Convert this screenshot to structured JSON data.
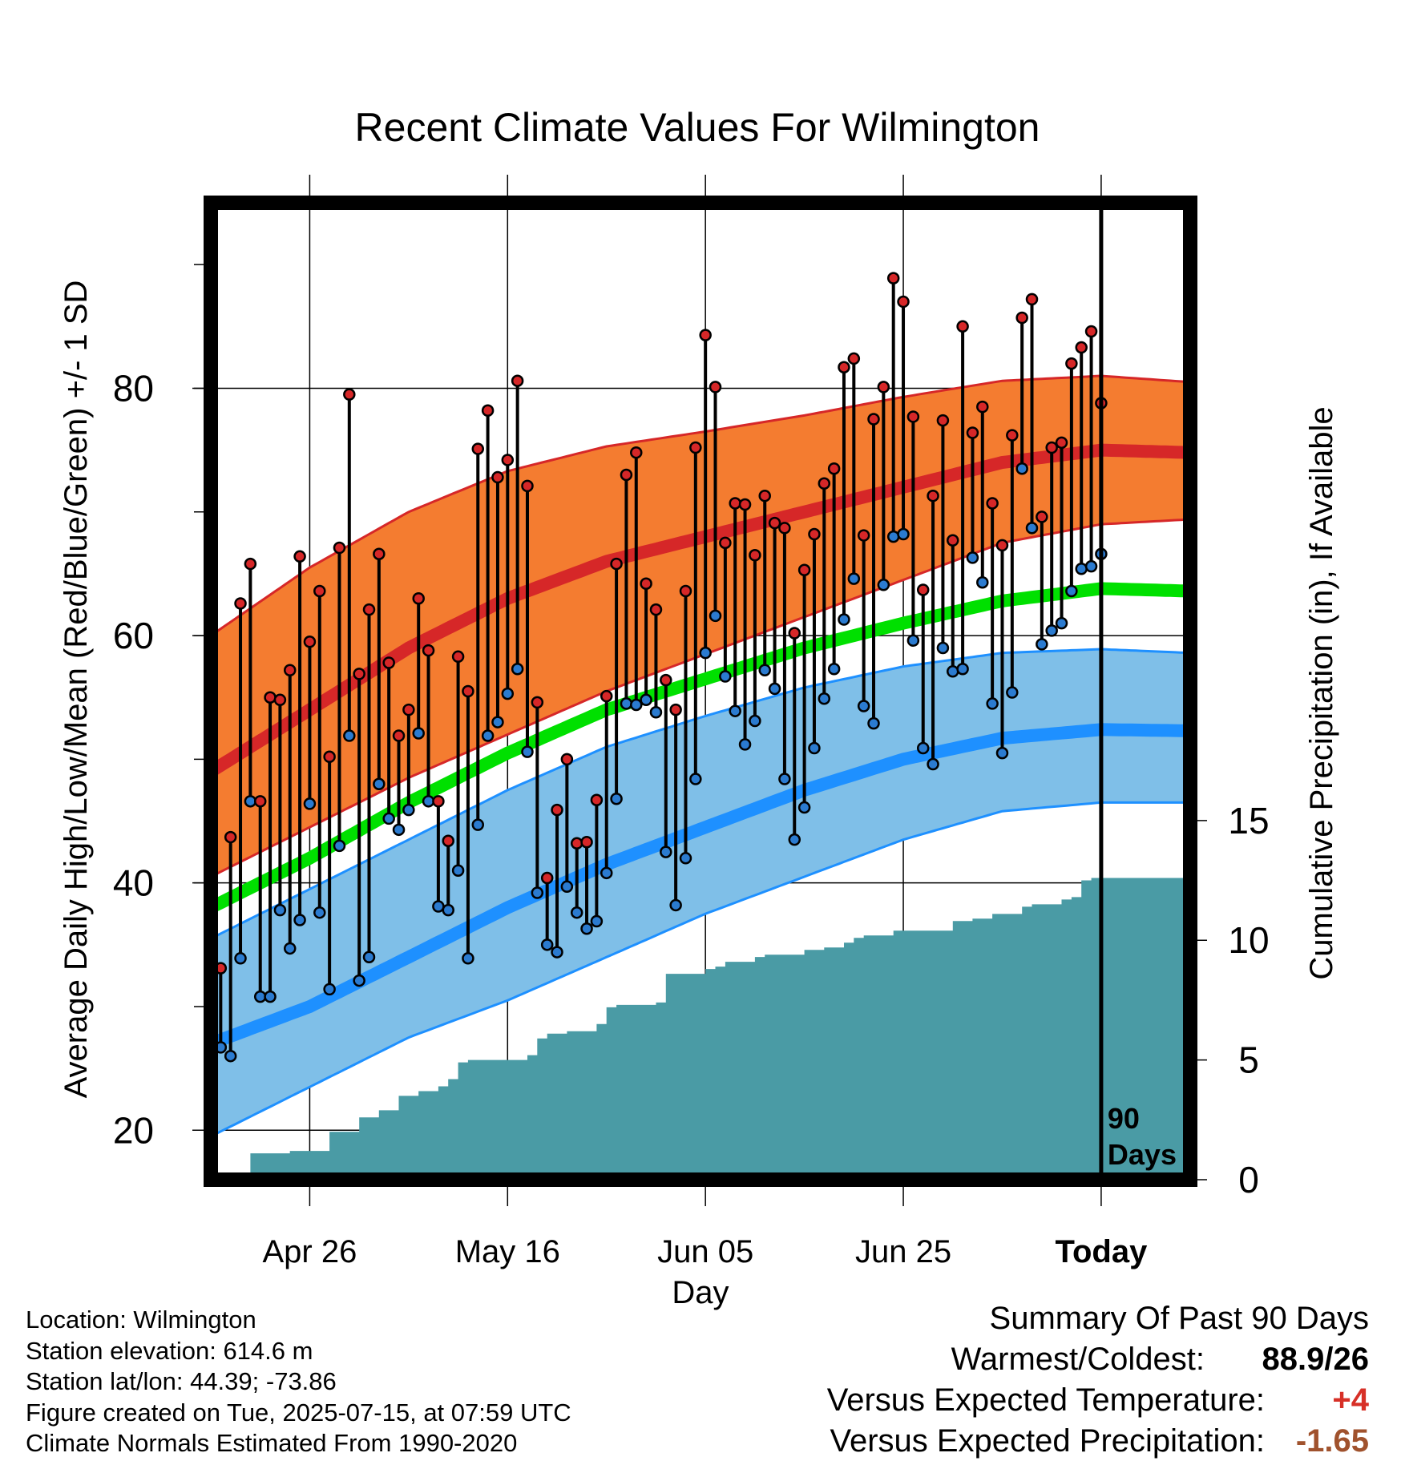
{
  "title": "Recent Climate Values For Wilmington",
  "ylabel_left": "Average Daily High/Low/Mean (Red/Blue/Green) +/- 1 SD",
  "ylabel_right": "Cumulative Precipitation (in), If Available",
  "xlabel": "Day",
  "colors": {
    "high_band": "#f47c30",
    "high_line": "#d62728",
    "mean_line": "#00e000",
    "low_band": "#7fbfe8",
    "low_line": "#1e90ff",
    "precip": "#4a9ba5",
    "high_dot": "#d62728",
    "low_dot": "#2b7bd0"
  },
  "info": {
    "location": "Location: Wilmington",
    "elevation": "Station elevation: 614.6 m",
    "latlon": "Station lat/lon: 44.39; -73.86",
    "created": "Figure created on Tue, 2025-07-15, at 07:59 UTC",
    "normals": "Climate Normals Estimated From 1990-2020"
  },
  "summary": {
    "heading": "Summary Of Past 90 Days",
    "warmest_label": "Warmest/Coldest:",
    "warmest_value": "88.9/26",
    "temp_label": "Versus Expected Temperature:",
    "temp_value": "+4",
    "precip_label": "Versus Expected Precipitation:",
    "precip_value": "-1.65"
  },
  "chart_data": {
    "type": "line",
    "title": "Recent Climate Values For Wilmington",
    "xlabel": "Day",
    "ylabel": "Average Daily High/Low/Mean (Red/Blue/Green) +/- 1 SD",
    "y2label": "Cumulative Precipitation (in), If Available",
    "xlim": [
      -90,
      9
    ],
    "ylim": [
      16,
      95
    ],
    "y2lim": [
      0,
      40.8
    ],
    "x_ticks": [
      {
        "x": -80,
        "label": "Apr 26"
      },
      {
        "x": -60,
        "label": "May 16"
      },
      {
        "x": -40,
        "label": "Jun 05"
      },
      {
        "x": -20,
        "label": "Jun 25"
      },
      {
        "x": 0,
        "label": "Today"
      }
    ],
    "y_ticks": [
      20,
      40,
      60,
      80
    ],
    "y_minor_ticks": [
      30,
      50,
      70,
      90
    ],
    "y2_ticks": [
      0,
      5,
      10,
      15
    ],
    "grid": true,
    "today_marker": {
      "x": 0,
      "label": [
        "90",
        "Days"
      ]
    },
    "normals": {
      "x": [
        -90,
        -80,
        -70,
        -60,
        -50,
        -40,
        -30,
        -20,
        -10,
        0,
        9
      ],
      "high_mean": [
        49,
        54,
        59,
        63,
        66,
        68,
        70,
        72,
        74,
        75,
        74.8
      ],
      "high_sd_upper": [
        60,
        65.5,
        70,
        73.3,
        75.3,
        76.5,
        77.8,
        79.3,
        80.6,
        81,
        80.5
      ],
      "high_sd_lower": [
        40.5,
        44.5,
        48.5,
        52,
        55.5,
        58.5,
        61.5,
        64.5,
        67.5,
        69,
        69.4
      ],
      "mean": [
        38,
        42,
        46.5,
        50.5,
        54,
        56.5,
        59,
        61,
        62.8,
        63.8,
        63.6
      ],
      "low_mean": [
        27,
        30,
        34,
        38,
        41.5,
        44.5,
        47.5,
        50,
        51.7,
        52.4,
        52.3
      ],
      "low_sd_upper": [
        35.5,
        39.5,
        43.5,
        47.5,
        51,
        53.5,
        55.8,
        57.5,
        58.6,
        58.9,
        58.6
      ],
      "low_sd_lower": [
        19.5,
        23.5,
        27.5,
        30.5,
        34,
        37.5,
        40.5,
        43.5,
        45.8,
        46.5,
        46.5
      ]
    },
    "series": [
      {
        "name": "High",
        "values": [
          33.1,
          43.7,
          62.6,
          65.8,
          46.6,
          55,
          54.8,
          57.2,
          66.4,
          59.5,
          63.6,
          50.2,
          67.1,
          79.5,
          56.9,
          62.1,
          66.6,
          57.8,
          51.9,
          54,
          63,
          58.8,
          46.6,
          43.4,
          58.3,
          55.5,
          75.1,
          78.2,
          72.8,
          74.2,
          80.6,
          72.1,
          54.6,
          40.4,
          45.9,
          50,
          43.2,
          43.3,
          46.7,
          55.1,
          65.8,
          73,
          74.8,
          64.2,
          62.1,
          56.4,
          54,
          63.6,
          75.2,
          84.3,
          80.1,
          67.5,
          70.7,
          70.6,
          66.5,
          71.3,
          69.1,
          68.7,
          60.2,
          65.3,
          68.2,
          72.3,
          73.5,
          81.7,
          82.4,
          68.1,
          77.5,
          80.1,
          88.9,
          87,
          77.7,
          63.7,
          71.3,
          77.4,
          67.7,
          85,
          76.4,
          78.5,
          70.7,
          67.3,
          76.2,
          85.7,
          87.2,
          69.6,
          75.2,
          75.6,
          82,
          83.3,
          84.6,
          78.8
        ]
      },
      {
        "name": "Low",
        "values": [
          26.7,
          26,
          33.9,
          46.6,
          30.8,
          30.8,
          37.8,
          34.7,
          37,
          46.4,
          37.6,
          31.4,
          43,
          51.9,
          32.1,
          34,
          48,
          45.2,
          44.3,
          45.9,
          52.1,
          46.6,
          38.1,
          37.8,
          41,
          33.9,
          44.7,
          51.9,
          53,
          55.3,
          57.3,
          50.6,
          39.2,
          35,
          34.4,
          39.7,
          37.6,
          36.3,
          36.9,
          40.8,
          46.8,
          54.5,
          54.4,
          54.8,
          53.8,
          42.5,
          38.2,
          42,
          48.4,
          58.6,
          61.6,
          56.7,
          53.9,
          51.2,
          53.1,
          57.2,
          55.7,
          48.4,
          43.5,
          46.1,
          50.9,
          54.9,
          57.3,
          61.3,
          64.6,
          54.3,
          52.9,
          64.1,
          68,
          68.2,
          59.6,
          50.9,
          49.6,
          59,
          57.1,
          57.3,
          66.3,
          64.3,
          54.5,
          50.5,
          55.4,
          73.5,
          68.7,
          59.3,
          60.4,
          61,
          63.6,
          65.4,
          65.6,
          66.6
        ]
      }
    ],
    "precip_cumulative": {
      "x": [
        -88,
        -86,
        -82,
        -80,
        -78,
        -75,
        -73,
        -71,
        -69,
        -67,
        -66,
        -65,
        -64,
        -63,
        -62,
        -61,
        -59,
        -58,
        -57,
        -56,
        -55,
        -54,
        -51,
        -50,
        -49,
        -48,
        -47,
        -45,
        -44,
        -43,
        -42,
        -41,
        -40,
        -39,
        -38,
        -35,
        -34,
        -32,
        -30,
        -29,
        -28,
        -26,
        -25,
        -24,
        -23,
        -21,
        -20,
        -19,
        -18,
        -15,
        -13,
        -11,
        -10,
        -8,
        -7,
        -6,
        -4,
        -3,
        -2,
        -1,
        0,
        9
      ],
      "values": [
        0,
        1.1,
        1.2,
        1.2,
        2,
        2.6,
        2.9,
        3.5,
        3.7,
        3.9,
        4.2,
        4.9,
        5,
        5,
        5,
        5,
        5,
        5.2,
        5.9,
        6.1,
        6.1,
        6.2,
        6.5,
        7.2,
        7.3,
        7.3,
        7.3,
        7.4,
        8.6,
        8.6,
        8.6,
        8.6,
        8.8,
        8.9,
        9.1,
        9.3,
        9.4,
        9.4,
        9.6,
        9.6,
        9.7,
        9.9,
        10.1,
        10.2,
        10.2,
        10.4,
        10.4,
        10.4,
        10.4,
        10.8,
        10.9,
        11.1,
        11.1,
        11.4,
        11.5,
        11.5,
        11.7,
        11.8,
        12.5,
        12.6,
        12.6,
        12.6
      ]
    }
  }
}
